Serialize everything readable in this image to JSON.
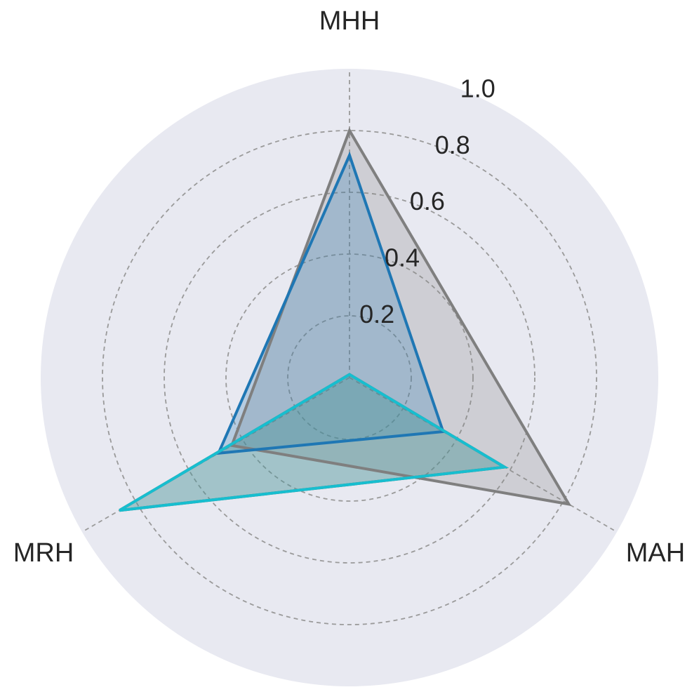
{
  "chart_data": {
    "type": "radar",
    "axes": [
      "MHH",
      "MAH",
      "MRH"
    ],
    "rlim": [
      0,
      1.0
    ],
    "rticks": [
      "0.2",
      "0.4",
      "0.6",
      "0.8",
      "1.0"
    ],
    "grid": true,
    "legend": "none",
    "background_color": "#e8e9f1",
    "series": [
      {
        "values": [
          0.8,
          0.82,
          0.44
        ],
        "color": "#7f7f7f",
        "fill_opacity": 0.25
      },
      {
        "values": [
          0.72,
          0.35,
          0.49
        ],
        "color": "#1f77b4",
        "fill_opacity": 0.25
      },
      {
        "values": [
          0.01,
          0.58,
          0.86
        ],
        "color": "#8c564b",
        "fill_opacity": 0.25
      },
      {
        "values": [
          0.01,
          0.58,
          0.86
        ],
        "color": "#17becf",
        "fill_opacity": 0.25
      }
    ]
  }
}
